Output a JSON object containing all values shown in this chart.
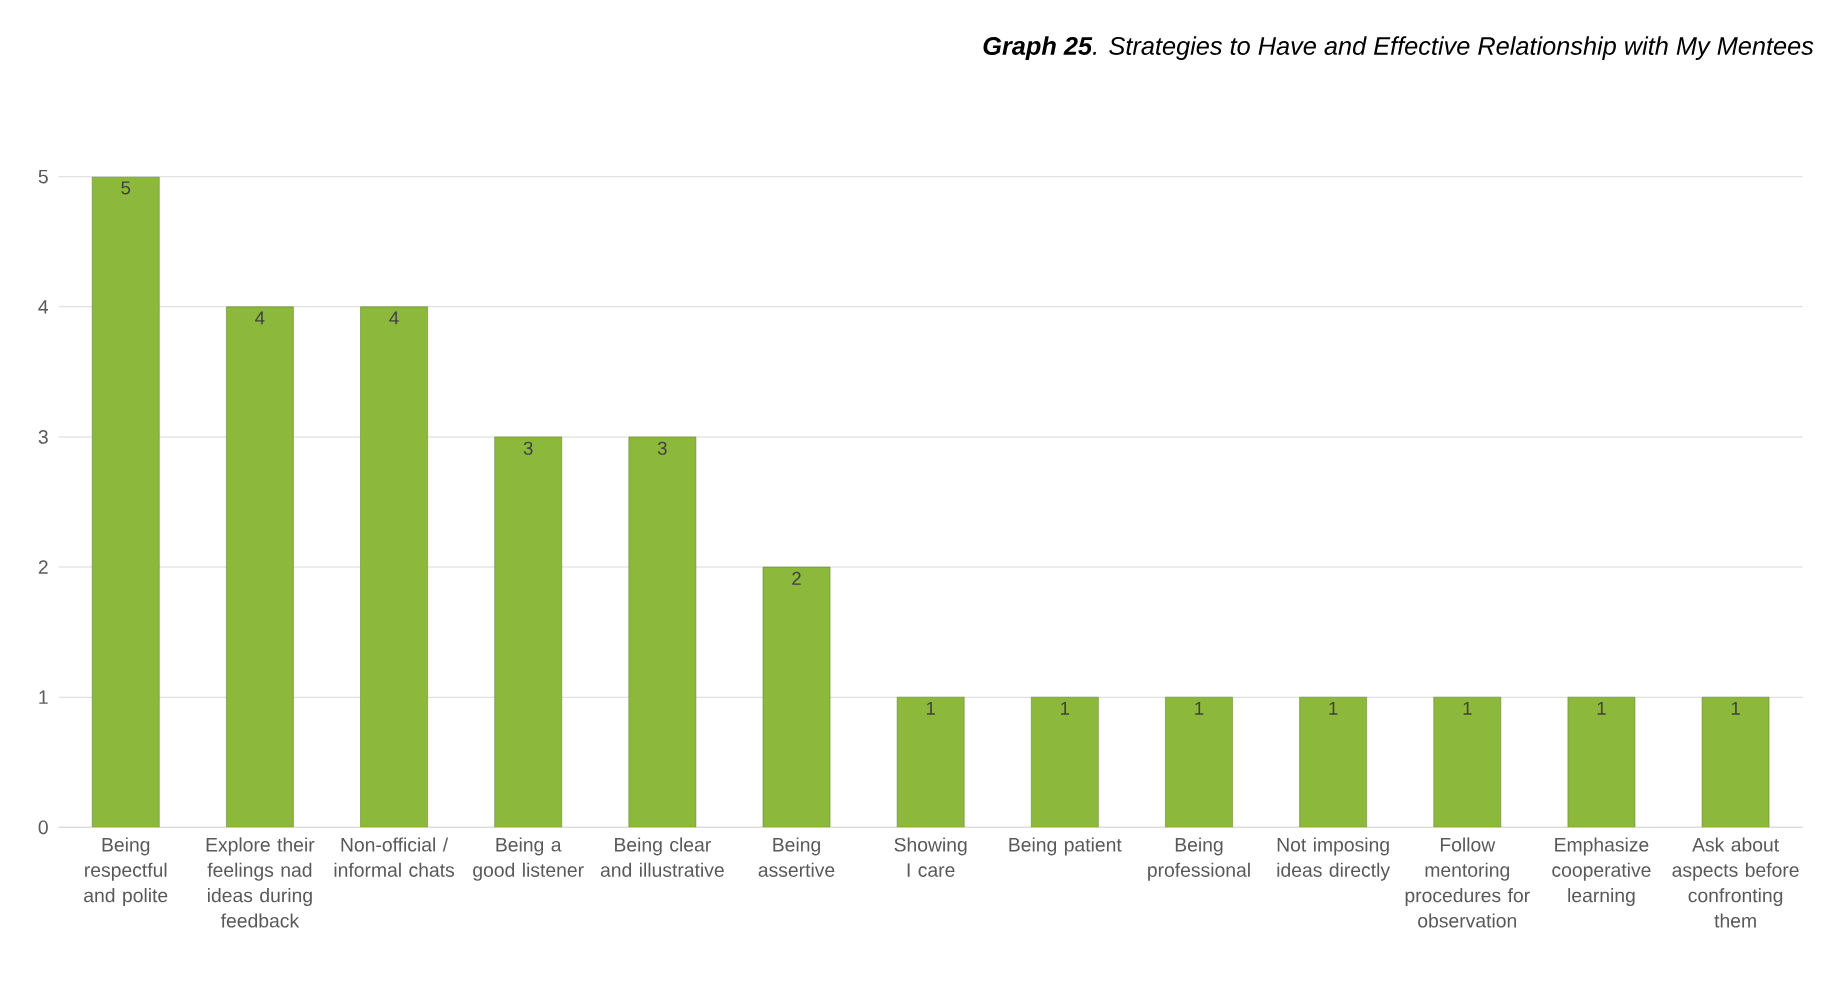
{
  "chart_data": {
    "type": "bar",
    "title": "**Graph 25**. Strategies to Have and Effective Relationship with My Mentees",
    "categories": [
      "Being respectful and polite",
      "Explore their feelings nad ideas during feedback",
      "Non-official / informal chats",
      "Being a good listener",
      "Being clear and illustrative",
      "Being assertive",
      "Showing I care",
      "Being patient",
      "Being professional",
      "Not imposing ideas directly",
      "Follow mentoring procedures for observation",
      "Emphasize cooperative learning",
      "Ask about aspects before confronting them"
    ],
    "values": [
      5,
      4,
      4,
      3,
      3,
      2,
      1,
      1,
      1,
      1,
      1,
      1,
      1
    ],
    "color": "#8cb83c",
    "ylim": [
      0,
      5
    ],
    "yticks": [
      0,
      1,
      2,
      3,
      4,
      5
    ],
    "grid": true,
    "data_labels": true
  }
}
